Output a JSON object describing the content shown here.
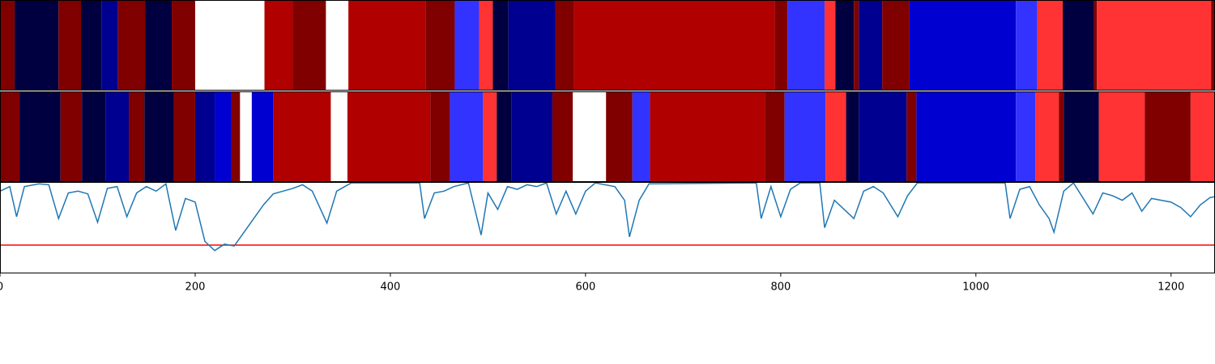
{
  "chart_data": [
    {
      "type": "segments",
      "xlim": [
        0,
        1245
      ],
      "bins": [
        0,
        15,
        60,
        83,
        104,
        121,
        149,
        176,
        200,
        271,
        300,
        334,
        357,
        436,
        466,
        491,
        505,
        521,
        569,
        588,
        794,
        807,
        845,
        856,
        875,
        880,
        904,
        932,
        1041,
        1063,
        1089,
        1121,
        1124,
        1241,
        1245
      ],
      "colors": [
        "#800000",
        "#000040",
        "#800000",
        "#000040",
        "#000090",
        "#800000",
        "#000040",
        "#800000",
        "#ffffff",
        "#b00000",
        "#800000",
        "#ffffff",
        "#b00000",
        "#800000",
        "#3333ff",
        "#ff3333",
        "#000040",
        "#000090",
        "#800000",
        "#b00000",
        "#800000",
        "#3333ff",
        "#ff3333",
        "#000040",
        "#800000",
        "#000090",
        "#800000",
        "#0000d0",
        "#3333ff",
        "#ff3333",
        "#000040",
        "#800000",
        "#ff3333",
        "#800000"
      ]
    },
    {
      "type": "segments",
      "xlim": [
        0,
        1245
      ],
      "bins": [
        0,
        20,
        62,
        84,
        108,
        132,
        148,
        178,
        200,
        220,
        237,
        246,
        258,
        280,
        339,
        356,
        441,
        461,
        495,
        509,
        524,
        566,
        587,
        621,
        648,
        666,
        784,
        804,
        846,
        867,
        880,
        929,
        939,
        1041,
        1061,
        1085,
        1090,
        1126,
        1173,
        1220,
        1245
      ],
      "colors": [
        "#800000",
        "#000040",
        "#800000",
        "#000040",
        "#000090",
        "#800000",
        "#000040",
        "#800000",
        "#000090",
        "#0000d0",
        "#800000",
        "#ffffff",
        "#0000d0",
        "#b00000",
        "#ffffff",
        "#b00000",
        "#800000",
        "#3333ff",
        "#ff3333",
        "#000040",
        "#000090",
        "#800000",
        "#ffffff",
        "#800000",
        "#3333ff",
        "#b00000",
        "#800000",
        "#3333ff",
        "#ff3333",
        "#000040",
        "#000090",
        "#800000",
        "#0000d0",
        "#3333ff",
        "#ff3333",
        "#800000",
        "#000040",
        "#ff3333",
        "#800000",
        "#ff3333"
      ]
    },
    {
      "type": "line",
      "xlim": [
        0,
        1245
      ],
      "ylim": [
        0,
        1
      ],
      "color": "#1f77b4",
      "hline": {
        "value": 0.31,
        "color": "#ff0000"
      },
      "xticks": [
        0,
        200,
        400,
        600,
        800,
        1000,
        1200
      ],
      "x": [
        0,
        10,
        17,
        25,
        40,
        50,
        60,
        70,
        80,
        90,
        100,
        110,
        120,
        130,
        140,
        150,
        160,
        170,
        180,
        190,
        200,
        210,
        220,
        230,
        240,
        250,
        260,
        270,
        280,
        290,
        300,
        310,
        320,
        335,
        345,
        360,
        400,
        430,
        435,
        445,
        455,
        465,
        480,
        493,
        500,
        510,
        520,
        530,
        540,
        550,
        560,
        570,
        580,
        590,
        600,
        610,
        630,
        640,
        645,
        655,
        665,
        775,
        780,
        790,
        800,
        810,
        820,
        840,
        845,
        855,
        865,
        875,
        885,
        895,
        905,
        920,
        930,
        940,
        1030,
        1035,
        1045,
        1055,
        1065,
        1075,
        1080,
        1090,
        1100,
        1120,
        1130,
        1140,
        1150,
        1160,
        1170,
        1180,
        1190,
        1200,
        1210,
        1220,
        1230,
        1240,
        1245
      ],
      "values": [
        0.9,
        0.95,
        0.62,
        0.95,
        0.98,
        0.97,
        0.6,
        0.88,
        0.9,
        0.87,
        0.56,
        0.93,
        0.95,
        0.62,
        0.88,
        0.95,
        0.9,
        0.98,
        0.47,
        0.82,
        0.78,
        0.35,
        0.25,
        0.32,
        0.3,
        0.45,
        0.6,
        0.75,
        0.87,
        0.9,
        0.93,
        0.97,
        0.9,
        0.55,
        0.9,
        0.99,
        0.99,
        0.99,
        0.6,
        0.88,
        0.9,
        0.95,
        0.99,
        0.42,
        0.88,
        0.7,
        0.95,
        0.92,
        0.97,
        0.95,
        0.99,
        0.65,
        0.9,
        0.65,
        0.9,
        0.99,
        0.95,
        0.8,
        0.4,
        0.8,
        0.98,
        0.99,
        0.6,
        0.95,
        0.62,
        0.92,
        0.99,
        0.99,
        0.5,
        0.8,
        0.7,
        0.6,
        0.9,
        0.95,
        0.88,
        0.62,
        0.85,
        0.99,
        0.99,
        0.6,
        0.92,
        0.95,
        0.75,
        0.6,
        0.45,
        0.9,
        0.99,
        0.65,
        0.88,
        0.85,
        0.8,
        0.88,
        0.68,
        0.82,
        0.8,
        0.78,
        0.72,
        0.62,
        0.75,
        0.83,
        0.84
      ]
    }
  ]
}
